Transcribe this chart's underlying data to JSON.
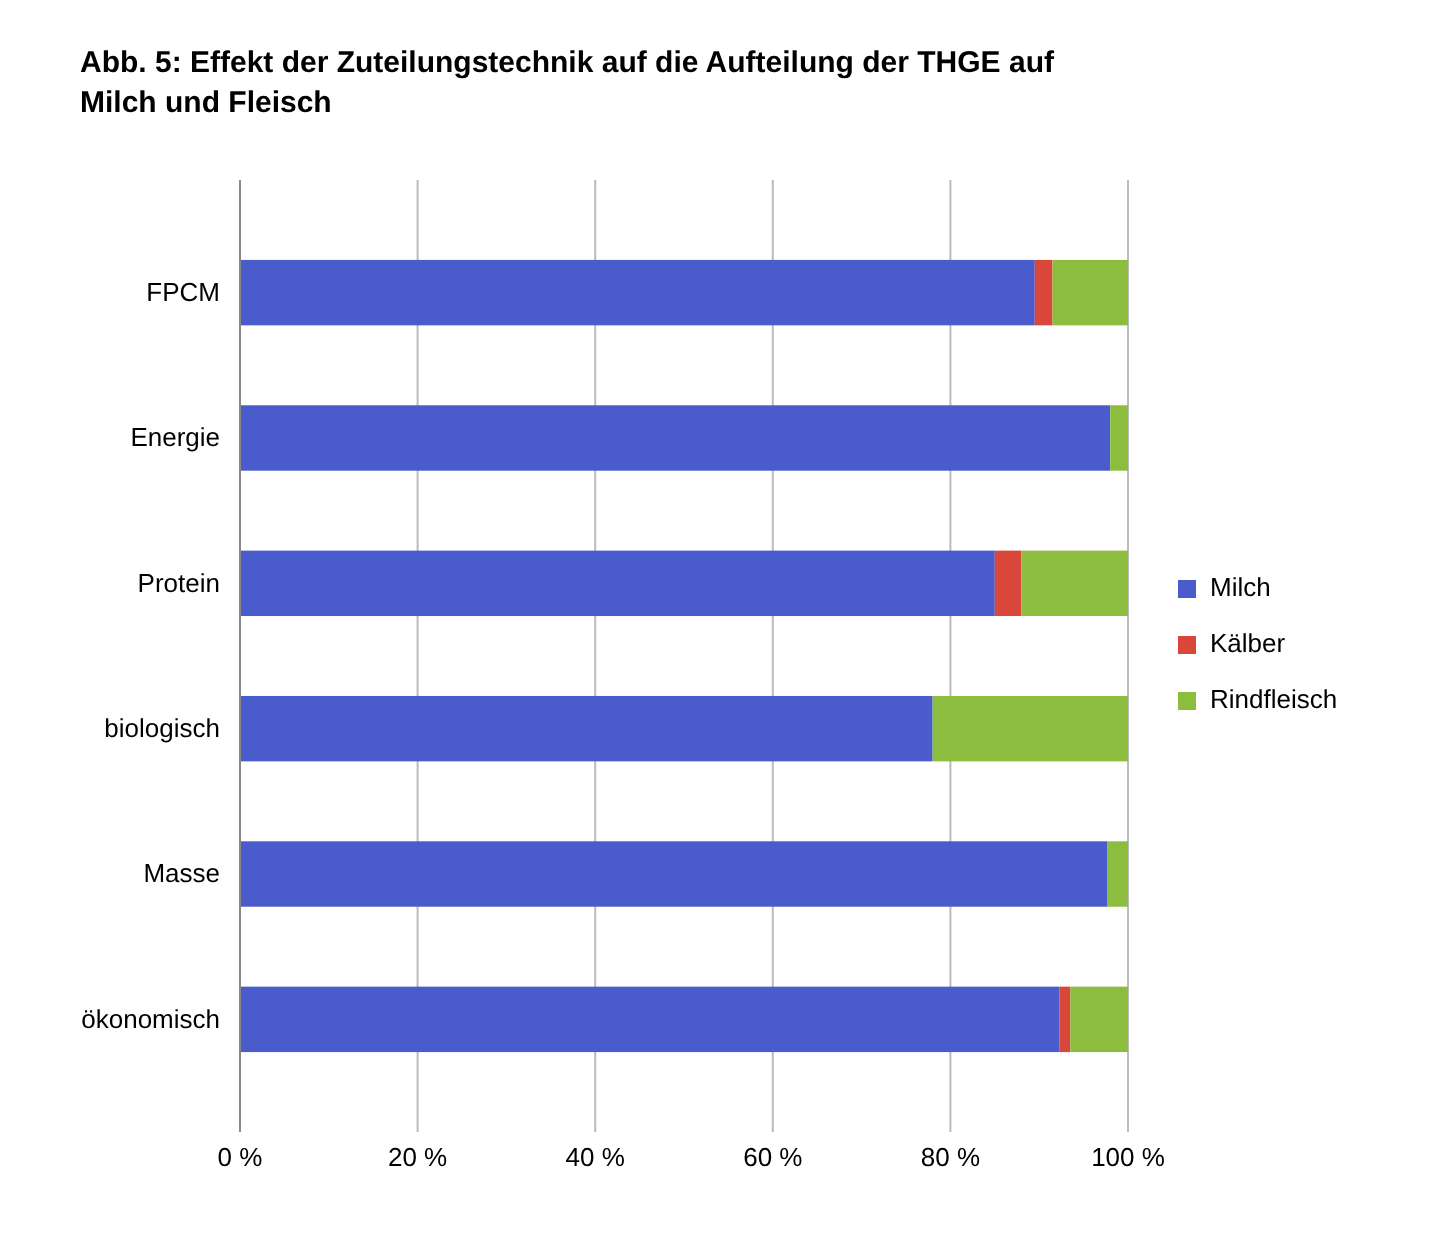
{
  "chart_data": {
    "type": "bar",
    "title": "Abb. 5: Effekt der Zuteilungstechnik auf die Aufteilung der THGE auf Milch und Fleisch",
    "orientation": "horizontal",
    "stacked": true,
    "categories": [
      "FPCM",
      "Energie",
      "Protein",
      "biologisch",
      "Masse",
      "ökonomisch"
    ],
    "series": [
      {
        "name": "Milch",
        "color": "#4a5ccc",
        "values": [
          89.5,
          98,
          85,
          78,
          97.7,
          92.3
        ]
      },
      {
        "name": "Kälber",
        "color": "#d9473a",
        "values": [
          2,
          0,
          3,
          0,
          0,
          1.2
        ]
      },
      {
        "name": "Rindfleisch",
        "color": "#8dbd3f",
        "values": [
          8.5,
          2,
          12,
          22,
          2.3,
          6.5
        ]
      }
    ],
    "xlim": [
      0,
      100
    ],
    "xticks": [
      {
        "value": 0,
        "label": "0 %"
      },
      {
        "value": 20,
        "label": "20 %"
      },
      {
        "value": 40,
        "label": "40 %"
      },
      {
        "value": 60,
        "label": "60 %"
      },
      {
        "value": 80,
        "label": "80 %"
      },
      {
        "value": 100,
        "label": "100 %"
      }
    ],
    "grid": "x",
    "legend": "right"
  }
}
